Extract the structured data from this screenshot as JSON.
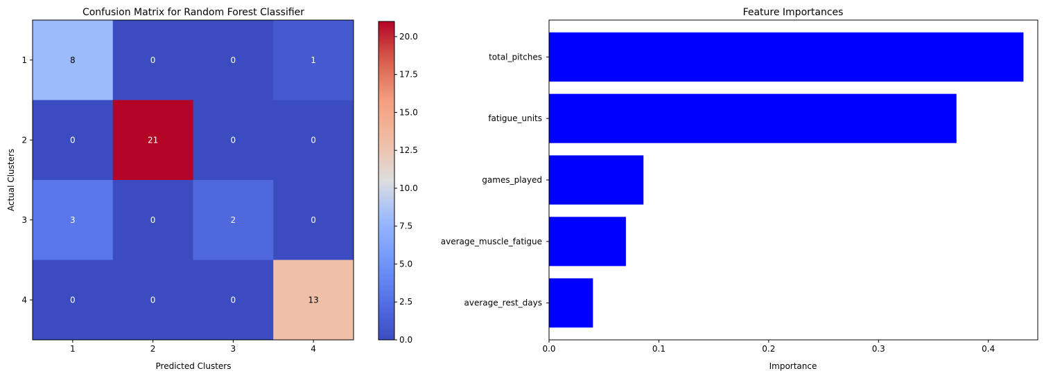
{
  "chart_data": [
    {
      "type": "heatmap",
      "title": "Confusion Matrix for Random Forest Classifier",
      "xlabel": "Predicted Clusters",
      "ylabel": "Actual Clusters",
      "x_categories": [
        "1",
        "2",
        "3",
        "4"
      ],
      "y_categories": [
        "1",
        "2",
        "3",
        "4"
      ],
      "values": [
        [
          8,
          0,
          0,
          1
        ],
        [
          0,
          21,
          0,
          0
        ],
        [
          3,
          0,
          2,
          0
        ],
        [
          0,
          0,
          0,
          13
        ]
      ],
      "colormap": "coolwarm",
      "colorbar": {
        "range": [
          0,
          21
        ],
        "ticks": [
          0.0,
          2.5,
          5.0,
          7.5,
          10.0,
          12.5,
          15.0,
          17.5,
          20.0
        ],
        "tick_labels": [
          "0.0",
          "2.5",
          "5.0",
          "7.5",
          "10.0",
          "12.5",
          "15.0",
          "17.5",
          "20.0"
        ]
      }
    },
    {
      "type": "bar",
      "orientation": "horizontal",
      "title": "Feature Importances",
      "xlabel": "Importance",
      "ylabel": "",
      "categories": [
        "total_pitches",
        "fatigue_units",
        "games_played",
        "average_muscle_fatigue",
        "average_rest_days"
      ],
      "values": [
        0.432,
        0.371,
        0.086,
        0.07,
        0.04
      ],
      "xlim": [
        0,
        0.445
      ],
      "x_ticks": [
        0.0,
        0.1,
        0.2,
        0.3,
        0.4
      ],
      "x_tick_labels": [
        "0.0",
        "0.1",
        "0.2",
        "0.3",
        "0.4"
      ],
      "bar_color": "#0000ff"
    }
  ]
}
